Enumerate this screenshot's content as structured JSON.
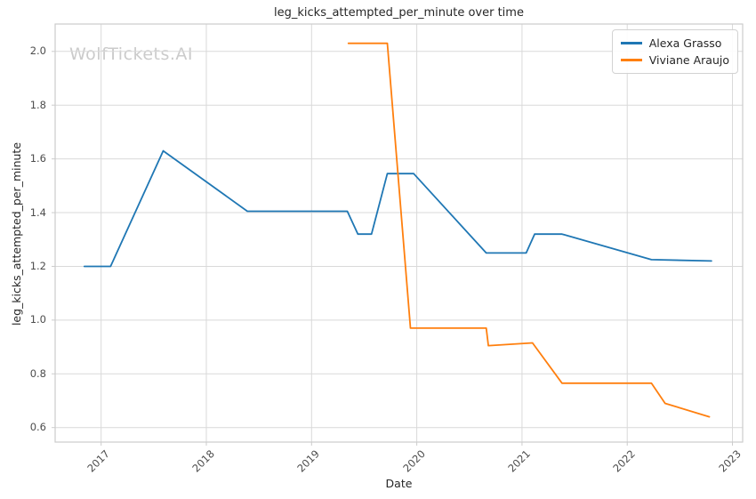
{
  "watermark": "WolfTickets.AI",
  "chart_data": {
    "type": "line",
    "title": "leg_kicks_attempted_per_minute over time",
    "xlabel": "Date",
    "ylabel": "leg_kicks_attempted_per_minute",
    "xlim": [
      2016.563,
      2023.097
    ],
    "ylim": [
      0.546,
      2.102
    ],
    "grid": true,
    "legend_position": "upper right",
    "x_ticks": [
      2017,
      2018,
      2019,
      2020,
      2021,
      2022,
      2023
    ],
    "x_tick_labels": [
      "2017",
      "2018",
      "2019",
      "2020",
      "2021",
      "2022",
      "2023"
    ],
    "y_ticks": [
      0.6,
      0.8,
      1.0,
      1.2,
      1.4,
      1.6,
      1.8,
      2.0
    ],
    "y_tick_labels": [
      "0.6",
      "0.8",
      "1.0",
      "1.2",
      "1.4",
      "1.6",
      "1.8",
      "2.0"
    ],
    "series": [
      {
        "name": "Alexa Grasso",
        "color": "#1f77b4",
        "x": [
          2016.84,
          2017.09,
          2017.59,
          2018.39,
          2019.34,
          2019.44,
          2019.57,
          2019.72,
          2019.97,
          2020.66,
          2021.04,
          2021.12,
          2021.38,
          2022.23,
          2022.8
        ],
        "y": [
          1.2,
          1.2,
          1.63,
          1.405,
          1.405,
          1.32,
          1.32,
          1.545,
          1.545,
          1.25,
          1.25,
          1.32,
          1.32,
          1.225,
          1.22
        ]
      },
      {
        "name": "Viviane Araujo",
        "color": "#ff7f0e",
        "x": [
          2019.35,
          2019.72,
          2019.94,
          2020.66,
          2020.68,
          2021.1,
          2021.38,
          2022.23,
          2022.36,
          2022.78
        ],
        "y": [
          2.03,
          2.03,
          0.97,
          0.97,
          0.905,
          0.915,
          0.765,
          0.765,
          0.69,
          0.64
        ]
      }
    ],
    "colors": {
      "grid": "#d9d9d9",
      "spine": "#cccccc",
      "tick_text": "#4d4d4d",
      "title_text": "#262626",
      "watermark": "#cbcbcb"
    }
  }
}
